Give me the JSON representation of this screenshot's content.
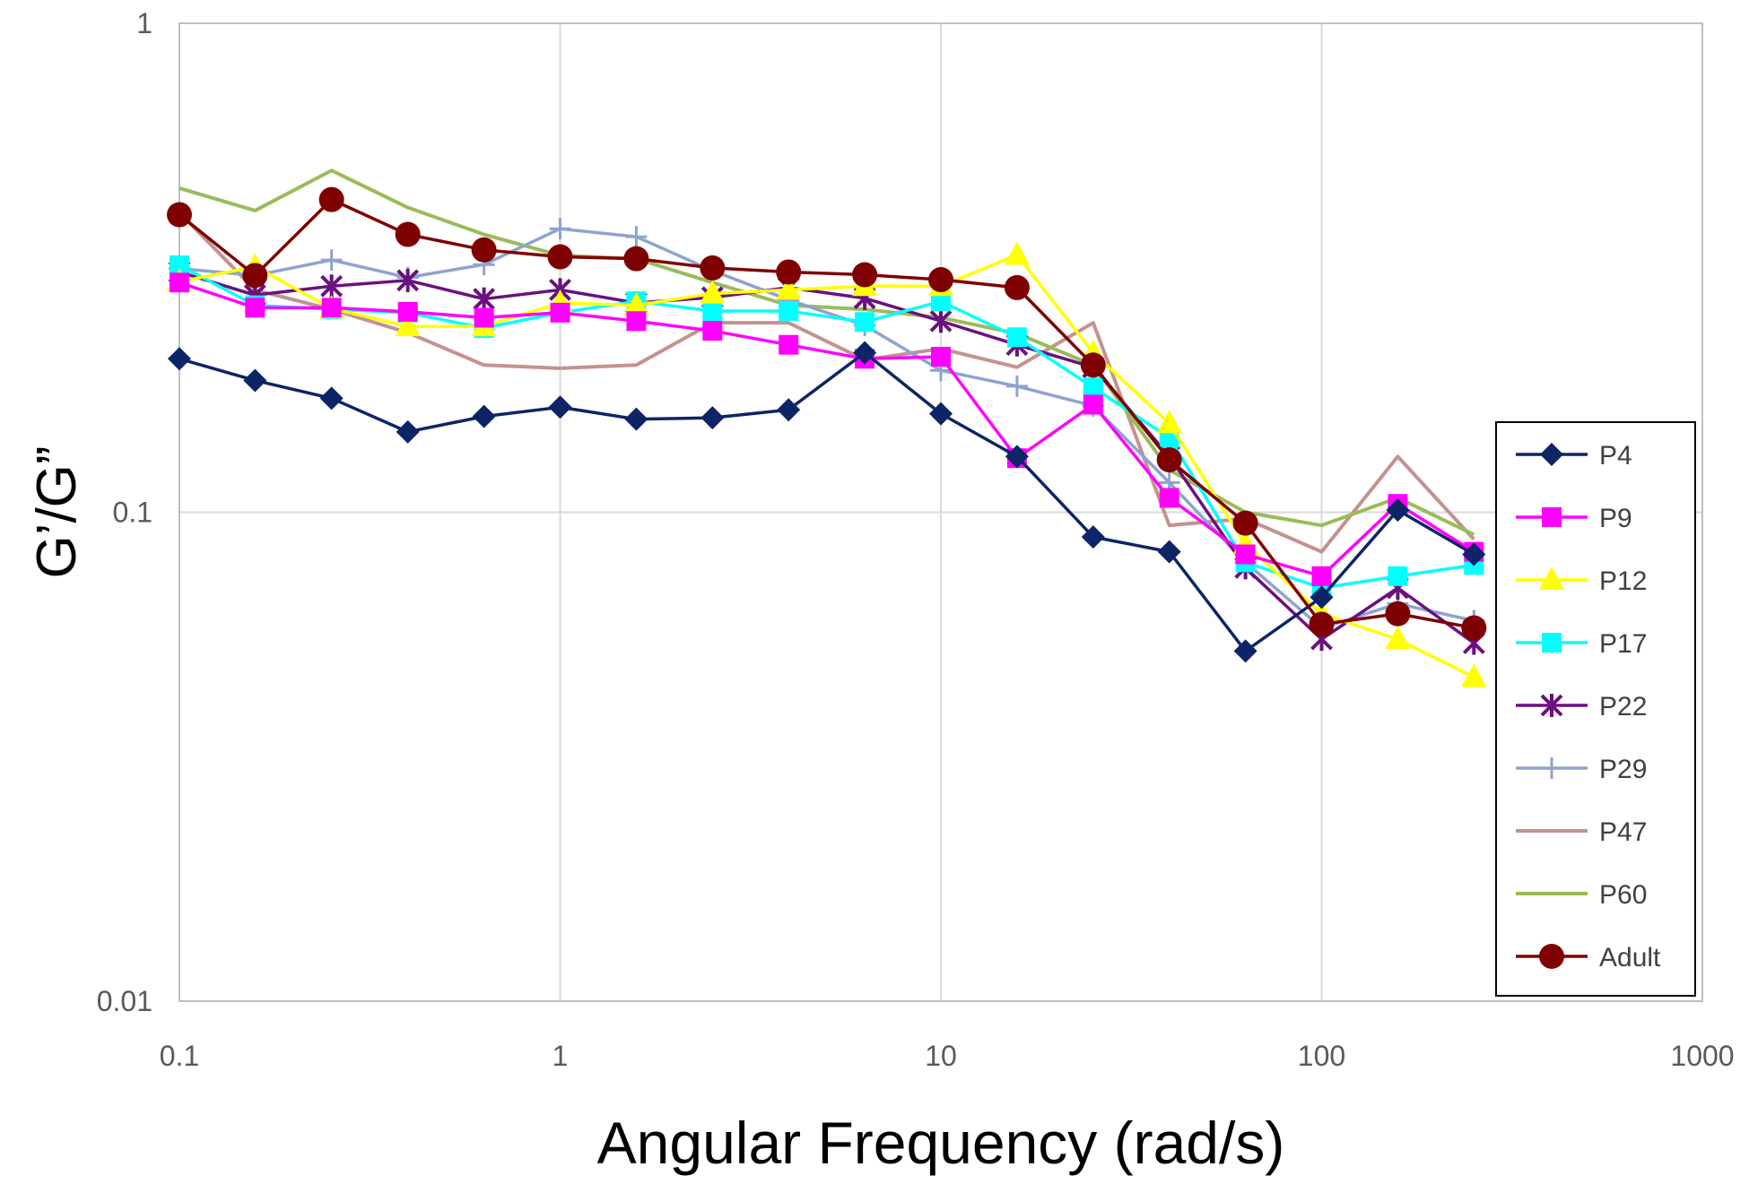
{
  "chart_data": {
    "type": "line",
    "xlabel": "Angular Frequency (rad/s)",
    "ylabel": "G’/G”",
    "xscale": "log",
    "yscale": "log",
    "xlim": [
      0.1,
      1000
    ],
    "ylim": [
      0.01,
      1
    ],
    "xticks": [
      "0.1",
      "1",
      "10",
      "100",
      "1000"
    ],
    "yticks": [
      "0.01",
      "0.1",
      "1"
    ],
    "grid": true,
    "legend_position": "right",
    "x": [
      0.1,
      0.158,
      0.251,
      0.398,
      0.631,
      1,
      1.585,
      2.512,
      3.981,
      6.31,
      10,
      15.85,
      25.12,
      39.81,
      63.1,
      100,
      158.5,
      251.2
    ],
    "series": [
      {
        "name": "P4",
        "color": "#0d2466",
        "marker": "diamond",
        "values": [
          0.206,
          0.186,
          0.171,
          0.146,
          0.157,
          0.164,
          0.155,
          0.156,
          0.162,
          0.212,
          0.159,
          0.13,
          0.089,
          0.083,
          0.052,
          0.067,
          0.101,
          0.082
        ]
      },
      {
        "name": "P9",
        "color": "#ff00ff",
        "marker": "square",
        "values": [
          0.295,
          0.262,
          0.262,
          0.257,
          0.25,
          0.256,
          0.246,
          0.235,
          0.22,
          0.206,
          0.208,
          0.129,
          0.166,
          0.107,
          0.082,
          0.074,
          0.104,
          0.083
        ]
      },
      {
        "name": "P12",
        "color": "#ffff00",
        "marker": "triangle",
        "values": [
          0.296,
          0.318,
          0.261,
          0.24,
          0.24,
          0.268,
          0.265,
          0.28,
          0.285,
          0.29,
          0.29,
          0.336,
          0.212,
          0.152,
          0.086,
          0.062,
          0.055,
          0.046
        ]
      },
      {
        "name": "P17",
        "color": "#00ffff",
        "marker": "square",
        "values": [
          0.32,
          0.265,
          0.26,
          0.256,
          0.238,
          0.256,
          0.27,
          0.258,
          0.258,
          0.245,
          0.27,
          0.228,
          0.18,
          0.142,
          0.079,
          0.07,
          0.074,
          0.078
        ]
      },
      {
        "name": "P22",
        "color": "#6b1080",
        "marker": "star",
        "values": [
          0.31,
          0.278,
          0.29,
          0.298,
          0.273,
          0.285,
          0.268,
          0.275,
          0.288,
          0.274,
          0.246,
          0.22,
          0.198,
          0.13,
          0.077,
          0.055,
          0.07,
          0.054
        ]
      },
      {
        "name": "P29",
        "color": "#8fa3cf",
        "marker": "plus",
        "values": [
          0.315,
          0.305,
          0.328,
          0.302,
          0.321,
          0.38,
          0.366,
          0.312,
          0.272,
          0.241,
          0.195,
          0.181,
          0.165,
          0.115,
          0.079,
          0.058,
          0.065,
          0.06
        ]
      },
      {
        "name": "P47",
        "color": "#c49290",
        "marker": "none",
        "values": [
          0.41,
          0.285,
          0.26,
          0.233,
          0.2,
          0.197,
          0.2,
          0.244,
          0.244,
          0.205,
          0.216,
          0.198,
          0.244,
          0.094,
          0.097,
          0.083,
          0.13,
          0.088
        ]
      },
      {
        "name": "P60",
        "color": "#9bbb59",
        "marker": "none",
        "values": [
          0.46,
          0.414,
          0.5,
          0.42,
          0.37,
          0.335,
          0.33,
          0.295,
          0.265,
          0.26,
          0.25,
          0.232,
          0.2,
          0.122,
          0.1,
          0.094,
          0.107,
          0.09
        ]
      },
      {
        "name": "Adult",
        "color": "#7f0000",
        "marker": "circle",
        "values": [
          0.406,
          0.305,
          0.436,
          0.37,
          0.344,
          0.333,
          0.33,
          0.316,
          0.31,
          0.306,
          0.299,
          0.288,
          0.2,
          0.128,
          0.095,
          0.059,
          0.062,
          0.058
        ]
      }
    ]
  }
}
